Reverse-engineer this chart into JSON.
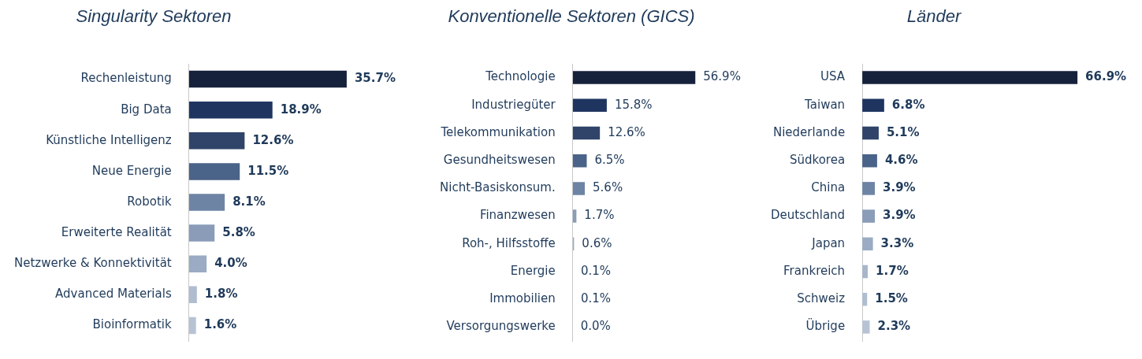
{
  "chart_data": [
    {
      "type": "bar",
      "orientation": "horizontal",
      "title": "Singularity Sektoren",
      "categories": [
        "Rechenleistung",
        "Big Data",
        "Künstliche Intelligenz",
        "Neue Energie",
        "Robotik",
        "Erweiterte Realität",
        "Netzwerke & Konnektivität",
        "Advanced Materials",
        "Bioinformatik"
      ],
      "values": [
        35.7,
        18.9,
        12.6,
        11.5,
        8.1,
        5.8,
        4.0,
        1.8,
        1.6
      ],
      "value_labels": [
        "35.7%",
        "18.9%",
        "12.6%",
        "11.5%",
        "8.1%",
        "5.8%",
        "4.0%",
        "1.8%",
        "1.6%"
      ],
      "colors": [
        "#16213c",
        "#1f3560",
        "#2f4468",
        "#4a6388",
        "#6e84a4",
        "#8a9cb8",
        "#9aabc3",
        "#b0bdd0",
        "#b7c3d4"
      ]
    },
    {
      "type": "bar",
      "orientation": "horizontal",
      "title": "Konventionelle Sektoren (GICS)",
      "categories": [
        "Technologie",
        "Industriegüter",
        "Telekommunikation",
        "Gesundheitswesen",
        "Nicht-Basiskonsum.",
        "Finanzwesen",
        "Roh-, Hilfsstoffe",
        "Energie",
        "Immobilien",
        "Versorgungswerke"
      ],
      "values": [
        56.9,
        15.8,
        12.6,
        6.5,
        5.6,
        1.7,
        0.6,
        0.1,
        0.1,
        0.0
      ],
      "value_labels": [
        "56.9%",
        "15.8%",
        "12.6%",
        "6.5%",
        "5.6%",
        "1.7%",
        "0.6%",
        "0.1%",
        "0.1%",
        "0.0%"
      ],
      "colors": [
        "#16213c",
        "#1f3560",
        "#2f4468",
        "#4a6388",
        "#6e84a4",
        "#8a9cb8",
        "#9aabc3",
        "#a8b6cb",
        "#b0bdd0",
        "#b7c3d4"
      ]
    },
    {
      "type": "bar",
      "orientation": "horizontal",
      "title": "Länder",
      "categories": [
        "USA",
        "Taiwan",
        "Niederlande",
        "Südkorea",
        "China",
        "Deutschland",
        "Japan",
        "Frankreich",
        "Schweiz",
        "Übrige"
      ],
      "values": [
        66.9,
        6.8,
        5.1,
        4.6,
        3.9,
        3.9,
        3.3,
        1.7,
        1.5,
        2.3
      ],
      "value_labels": [
        "66.9%",
        "6.8%",
        "5.1%",
        "4.6%",
        "3.9%",
        "3.9%",
        "3.3%",
        "1.7%",
        "1.5%",
        "2.3%"
      ],
      "colors": [
        "#16213c",
        "#1f3560",
        "#2f4468",
        "#4a6388",
        "#6e84a4",
        "#8a9cb8",
        "#9aabc3",
        "#a8b6cb",
        "#b0bdd0",
        "#b7c3d4"
      ]
    }
  ]
}
